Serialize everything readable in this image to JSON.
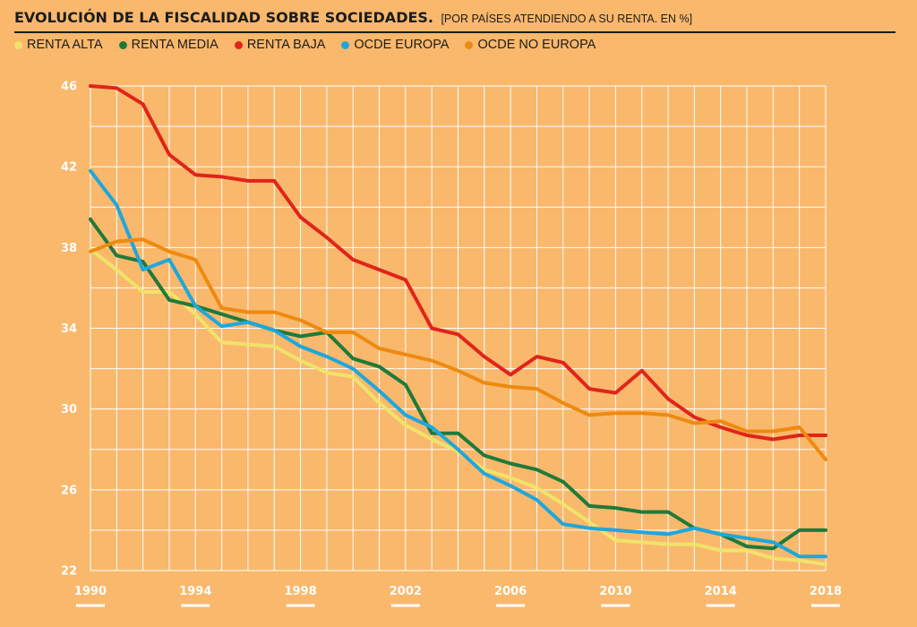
{
  "header": {
    "title": "EVOLUCIÓN DE LA FISCALIDAD SOBRE SOCIEDADES.",
    "subtitle": "[POR PAÍSES ATENDIENDO A SU RENTA. EN %]"
  },
  "colors": {
    "background": "#f9b86c",
    "grid": "#ffffff",
    "renta_alta": "#f0e36a",
    "renta_media": "#1f7a3a",
    "renta_baja": "#e0241b",
    "ocde_europa": "#1ea7dc",
    "ocde_no_europa": "#ee8a10"
  },
  "chart_data": {
    "type": "line",
    "title": "EVOLUCIÓN DE LA FISCALIDAD SOBRE SOCIEDADES.",
    "subtitle": "[POR PAÍSES ATENDIENDO A SU RENTA. EN %]",
    "xlabel": "",
    "ylabel": "",
    "xlim": [
      1990,
      2018
    ],
    "ylim": [
      22,
      46
    ],
    "x_ticks": [
      1990,
      1994,
      1998,
      2002,
      2006,
      2010,
      2014,
      2018
    ],
    "y_ticks": [
      22,
      26,
      30,
      34,
      38,
      42,
      46
    ],
    "grid": true,
    "legend_position": "top-left",
    "x": [
      1990,
      1991,
      1992,
      1993,
      1994,
      1995,
      1996,
      1997,
      1998,
      1999,
      2000,
      2001,
      2002,
      2003,
      2004,
      2005,
      2006,
      2007,
      2008,
      2009,
      2010,
      2011,
      2012,
      2013,
      2014,
      2015,
      2016,
      2017,
      2018
    ],
    "series": [
      {
        "name": "RENTA ALTA",
        "color": "#f0e36a",
        "values": [
          37.9,
          36.9,
          35.8,
          35.8,
          34.7,
          33.3,
          33.2,
          33.1,
          32.4,
          31.8,
          31.6,
          30.3,
          29.2,
          28.5,
          27.9,
          27.0,
          26.6,
          26.1,
          25.3,
          24.4,
          23.5,
          23.4,
          23.3,
          23.3,
          23.0,
          23.0,
          22.6,
          22.5,
          22.3
        ]
      },
      {
        "name": "RENTA MEDIA",
        "color": "#1f7a3a",
        "values": [
          39.4,
          37.6,
          37.3,
          35.4,
          35.1,
          34.7,
          34.3,
          33.9,
          33.6,
          33.8,
          32.5,
          32.1,
          31.2,
          28.8,
          28.8,
          27.7,
          27.3,
          27.0,
          26.4,
          25.2,
          25.1,
          24.9,
          24.9,
          24.1,
          23.8,
          23.2,
          23.1,
          24.0,
          24.0
        ]
      },
      {
        "name": "RENTA BAJA",
        "color": "#e0241b",
        "values": [
          46.0,
          45.9,
          45.1,
          42.6,
          41.6,
          41.5,
          41.3,
          41.3,
          39.5,
          38.5,
          37.4,
          36.9,
          36.4,
          34.0,
          33.7,
          32.6,
          31.7,
          32.6,
          32.3,
          31.0,
          30.8,
          31.9,
          30.5,
          29.6,
          29.1,
          28.7,
          28.5,
          28.7,
          28.7
        ]
      },
      {
        "name": "OCDE EUROPA",
        "color": "#1ea7dc",
        "values": [
          41.8,
          40.1,
          36.9,
          37.4,
          35.1,
          34.1,
          34.3,
          33.9,
          33.1,
          32.6,
          32.0,
          30.9,
          29.7,
          29.1,
          28.0,
          26.8,
          26.2,
          25.5,
          24.3,
          24.1,
          24.0,
          23.9,
          23.8,
          24.1,
          23.8,
          23.6,
          23.4,
          22.7,
          22.7
        ]
      },
      {
        "name": "OCDE NO EUROPA",
        "color": "#ee8a10",
        "values": [
          37.8,
          38.3,
          38.4,
          37.8,
          37.4,
          35.0,
          34.8,
          34.8,
          34.4,
          33.8,
          33.8,
          33.0,
          32.7,
          32.4,
          31.9,
          31.3,
          31.1,
          31.0,
          30.3,
          29.7,
          29.8,
          29.8,
          29.7,
          29.3,
          29.4,
          28.9,
          28.9,
          29.1,
          27.5
        ]
      }
    ]
  }
}
